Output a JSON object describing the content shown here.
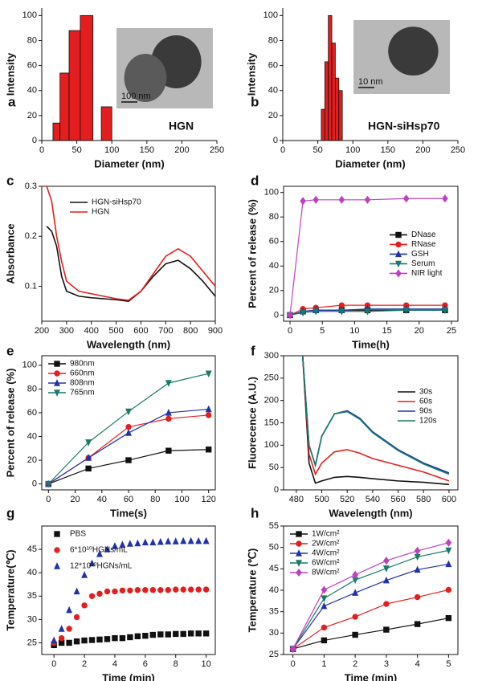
{
  "chart_data": [
    {
      "type": "histogram",
      "panel": "a",
      "xlabel": "Diameter (nm)",
      "ylabel": "Intensity",
      "xlim": [
        0,
        250
      ],
      "ylim": [
        0,
        106
      ],
      "xticks": [
        0,
        50,
        100,
        150,
        200,
        250
      ],
      "yticks": [
        0,
        20,
        40,
        60,
        80,
        100
      ],
      "bins": [
        16,
        26,
        39,
        55,
        73,
        85,
        100
      ],
      "counts": [
        14,
        54,
        88,
        100,
        0,
        27
      ],
      "color": "#e41e1e",
      "annotation": "HGN",
      "inset_scale": "100 nm"
    },
    {
      "type": "histogram",
      "panel": "b",
      "xlabel": "Diameter (nm)",
      "ylabel": "Intensity",
      "xlim": [
        0,
        250
      ],
      "ylim": [
        0,
        106
      ],
      "xticks": [
        0,
        50,
        100,
        150,
        200,
        250
      ],
      "yticks": [
        0,
        20,
        40,
        60,
        80,
        100
      ],
      "bins": [
        55,
        60,
        65,
        70,
        75,
        80,
        85
      ],
      "counts": [
        25,
        63,
        100,
        78,
        50,
        40
      ],
      "color": "#e41e1e",
      "annotation": "HGN-siHsp70",
      "inset_scale": "10 nm"
    },
    {
      "type": "line",
      "panel": "c",
      "xlabel": "Wavelength (nm)",
      "ylabel": "Absorbance",
      "xlim": [
        200,
        900
      ],
      "ylim": [
        0.03,
        0.3
      ],
      "xticks": [
        200,
        300,
        400,
        500,
        600,
        700,
        800,
        900
      ],
      "yticks": [
        0.1,
        0.2,
        0.3
      ],
      "legend": "upper-left",
      "x": [
        220,
        240,
        260,
        280,
        300,
        350,
        400,
        450,
        500,
        550,
        600,
        650,
        700,
        750,
        800,
        850,
        900
      ],
      "series": [
        {
          "name": "HGN-siHsp70",
          "color": "#111111",
          "values": [
            0.22,
            0.21,
            0.18,
            0.12,
            0.09,
            0.08,
            0.077,
            0.075,
            0.073,
            0.07,
            0.09,
            0.12,
            0.145,
            0.152,
            0.135,
            0.11,
            0.08
          ]
        },
        {
          "name": "HGN",
          "color": "#e41e1e",
          "values": [
            0.3,
            0.27,
            0.2,
            0.15,
            0.11,
            0.09,
            0.085,
            0.08,
            0.075,
            0.072,
            0.09,
            0.125,
            0.16,
            0.175,
            0.16,
            0.13,
            0.1
          ]
        }
      ]
    },
    {
      "type": "line",
      "panel": "d",
      "xlabel": "Time(h)",
      "ylabel": "Percent of release (%)",
      "xlim": [
        -1,
        26
      ],
      "ylim": [
        -5,
        105
      ],
      "xticks": [
        0,
        5,
        10,
        15,
        20,
        25
      ],
      "yticks": [
        0,
        20,
        40,
        60,
        80,
        100
      ],
      "legend": "right",
      "x": [
        0,
        2,
        4,
        8,
        12,
        18,
        24
      ],
      "series": [
        {
          "name": "DNase",
          "color": "#111111",
          "marker": "square",
          "values": [
            0,
            3,
            4,
            4,
            4,
            4,
            4
          ]
        },
        {
          "name": "RNase",
          "color": "#e41e1e",
          "marker": "circle",
          "values": [
            0,
            5,
            6,
            8,
            8,
            8,
            8
          ]
        },
        {
          "name": "GSH",
          "color": "#2233aa",
          "marker": "triangle",
          "values": [
            0,
            3,
            4,
            4,
            5,
            5,
            5
          ]
        },
        {
          "name": "Serum",
          "color": "#1a7a6a",
          "marker": "triangle-down",
          "values": [
            0,
            2,
            3,
            3,
            3,
            4,
            4
          ]
        },
        {
          "name": "NIR light",
          "color": "#c040c0",
          "marker": "diamond",
          "values": [
            0,
            93,
            94,
            94,
            94,
            95,
            95
          ]
        }
      ]
    },
    {
      "type": "line",
      "panel": "e",
      "xlabel": "Time(s)",
      "ylabel": "Percent of release (%)",
      "xlim": [
        -5,
        125
      ],
      "ylim": [
        -5,
        108
      ],
      "xticks": [
        0,
        20,
        40,
        60,
        80,
        100,
        120
      ],
      "yticks": [
        0,
        20,
        40,
        60,
        80,
        100
      ],
      "legend": "upper-left",
      "x": [
        0,
        30,
        60,
        90,
        120
      ],
      "series": [
        {
          "name": "980nm",
          "color": "#111111",
          "marker": "square",
          "values": [
            0,
            13,
            20,
            28,
            29
          ]
        },
        {
          "name": "660nm",
          "color": "#e41e1e",
          "marker": "circle",
          "values": [
            0,
            22,
            48,
            55,
            58
          ]
        },
        {
          "name": "808nm",
          "color": "#2233aa",
          "marker": "triangle",
          "values": [
            0,
            22,
            43,
            60,
            63
          ]
        },
        {
          "name": "765nm",
          "color": "#1a7a6a",
          "marker": "triangle-down",
          "values": [
            0,
            35,
            61,
            85,
            93
          ]
        }
      ]
    },
    {
      "type": "line",
      "panel": "f",
      "xlabel": "Wavelength (nm)",
      "ylabel": "Fluorecence (A.U.)",
      "xlim": [
        470,
        607
      ],
      "ylim": [
        0,
        300
      ],
      "xticks": [
        480,
        500,
        520,
        540,
        560,
        580,
        600
      ],
      "yticks": [
        0,
        50,
        100,
        150,
        200,
        250,
        300
      ],
      "legend": "upper-right",
      "x": [
        485,
        490,
        495,
        500,
        510,
        520,
        530,
        540,
        560,
        580,
        600
      ],
      "series": [
        {
          "name": "30s",
          "color": "#111111",
          "values": [
            300,
            60,
            15,
            20,
            28,
            30,
            28,
            25,
            20,
            17,
            12
          ]
        },
        {
          "name": "60s",
          "color": "#e41e1e",
          "values": [
            300,
            80,
            35,
            60,
            85,
            90,
            82,
            70,
            55,
            40,
            20
          ]
        },
        {
          "name": "90s",
          "color": "#2233aa",
          "values": [
            300,
            100,
            55,
            120,
            170,
            177,
            160,
            130,
            90,
            60,
            38
          ]
        },
        {
          "name": "120s",
          "color": "#1a7a6a",
          "values": [
            300,
            100,
            55,
            120,
            170,
            175,
            158,
            128,
            88,
            58,
            35
          ]
        }
      ]
    },
    {
      "type": "scatter",
      "panel": "g",
      "xlabel": "Time (min)",
      "ylabel": "Temperature(℃)",
      "xlim": [
        -0.8,
        10.6
      ],
      "ylim": [
        22.5,
        50
      ],
      "xticks": [
        0,
        2,
        4,
        6,
        8,
        10
      ],
      "yticks": [
        25,
        30,
        35,
        40,
        45
      ],
      "legend": "upper-left",
      "x": [
        0,
        0.5,
        1,
        1.5,
        2,
        2.5,
        3,
        3.5,
        4,
        4.5,
        5,
        5.5,
        6,
        6.5,
        7,
        7.5,
        8,
        8.5,
        9,
        9.5,
        10
      ],
      "series": [
        {
          "name": "PBS",
          "color": "#111111",
          "marker": "square",
          "values": [
            24.5,
            25,
            25,
            25.3,
            25.5,
            25.6,
            25.7,
            25.8,
            26,
            26,
            26.2,
            26.4,
            26.5,
            26.7,
            26.8,
            26.8,
            26.9,
            26.9,
            27,
            27,
            27
          ]
        },
        {
          "name": "6*10¹⁰HGNs/mL",
          "color": "#e41e1e",
          "marker": "circle",
          "values": [
            25,
            26,
            28,
            30.5,
            33,
            35,
            35.5,
            36,
            36,
            36.2,
            36.2,
            36.3,
            36.3,
            36.3,
            36.3,
            36.3,
            36.4,
            36.4,
            36.4,
            36.4,
            36.4
          ]
        },
        {
          "name": "12*10¹⁰HGNs/mL",
          "color": "#2233aa",
          "marker": "triangle",
          "values": [
            25.5,
            28,
            32,
            36,
            39.5,
            42,
            44,
            45,
            45.7,
            46,
            46.2,
            46.3,
            46.5,
            46.5,
            46.6,
            46.7,
            46.7,
            46.8,
            46.8,
            46.8,
            46.8
          ]
        }
      ]
    },
    {
      "type": "line",
      "panel": "h",
      "xlabel": "Time (min)",
      "ylabel": "Temperature (℃)",
      "xlim": [
        -0.3,
        5.3
      ],
      "ylim": [
        25,
        55
      ],
      "xticks": [
        0,
        1,
        2,
        3,
        4,
        5
      ],
      "yticks": [
        25,
        30,
        35,
        40,
        45,
        50,
        55
      ],
      "legend": "upper-left",
      "x": [
        0,
        1,
        2,
        3,
        4,
        5
      ],
      "series": [
        {
          "name": "1W/cm²",
          "color": "#111111",
          "marker": "square",
          "values": [
            26.3,
            28.3,
            29.6,
            30.8,
            32.1,
            33.5
          ]
        },
        {
          "name": "2W/cm²",
          "color": "#e41e1e",
          "marker": "circle",
          "values": [
            26.3,
            31.3,
            33.8,
            36.8,
            38.4,
            40.1
          ]
        },
        {
          "name": "4W/cm²",
          "color": "#2233aa",
          "marker": "triangle",
          "values": [
            26.3,
            36.3,
            39.4,
            42.3,
            44.8,
            46.1
          ]
        },
        {
          "name": "6W/cm²",
          "color": "#1a7a6a",
          "marker": "triangle-down",
          "values": [
            26.3,
            38.1,
            42.4,
            45.1,
            47.8,
            49.3
          ]
        },
        {
          "name": "8W/cm²",
          "color": "#c040c0",
          "marker": "diamond",
          "values": [
            26.3,
            40.1,
            43.6,
            46.9,
            49.2,
            51.1
          ]
        }
      ]
    }
  ]
}
